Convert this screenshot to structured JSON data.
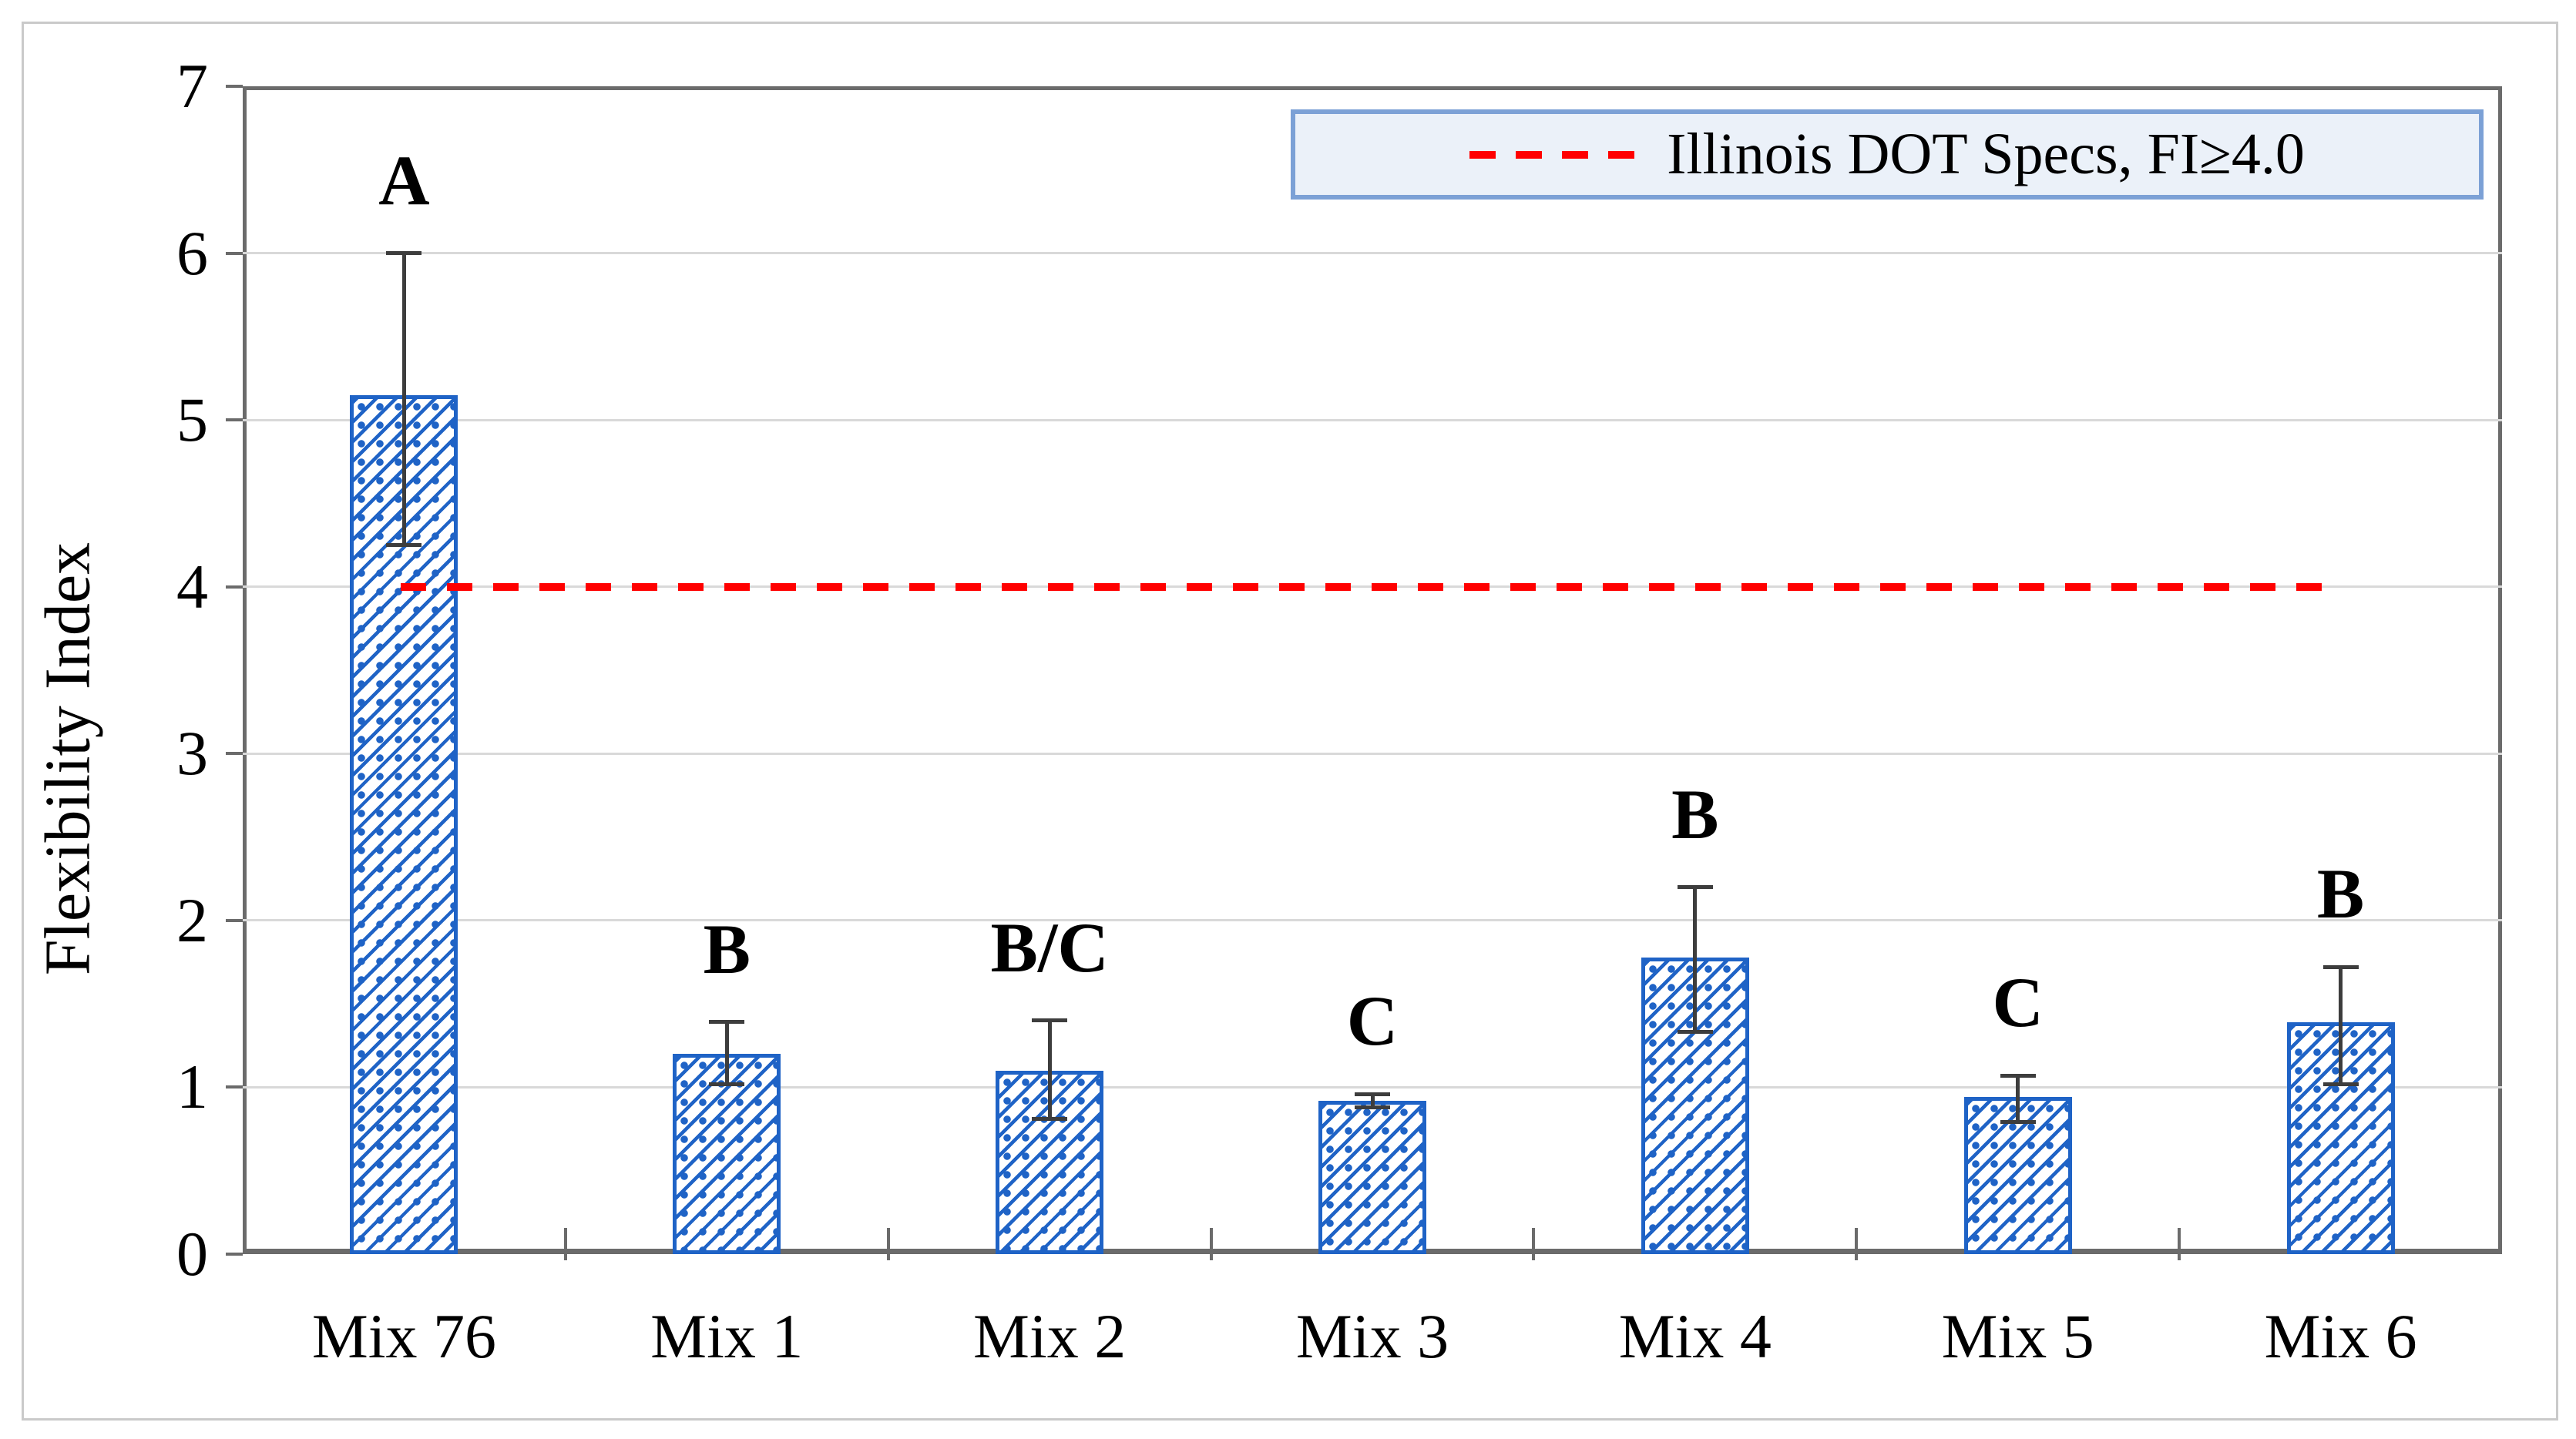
{
  "chart_data": {
    "type": "bar",
    "title": "",
    "xlabel": "",
    "ylabel": "Flexibility Index",
    "ylim": [
      0,
      7
    ],
    "yticks": [
      0,
      1,
      2,
      3,
      4,
      5,
      6,
      7
    ],
    "grid": "horizontal",
    "legend_position": "top-right",
    "categories": [
      "Mix 76",
      "Mix 1",
      "Mix 2",
      "Mix 3",
      "Mix 4",
      "Mix 5",
      "Mix 6"
    ],
    "series": [
      {
        "name": "Flexibility Index",
        "values": [
          5.15,
          1.2,
          1.1,
          0.92,
          1.78,
          0.94,
          1.39
        ],
        "error_upper": [
          6.0,
          1.39,
          1.4,
          0.96,
          2.2,
          1.07,
          1.72
        ],
        "error_lower": [
          4.25,
          1.02,
          0.81,
          0.88,
          1.33,
          0.79,
          1.02
        ],
        "sig_letters": [
          "A",
          "B",
          "B/C",
          "C",
          "B",
          "C",
          "B"
        ]
      }
    ],
    "reference_line": {
      "value": 4.0,
      "style": "dashed",
      "color": "#FF0000",
      "label": "Illinois DOT Specs, FI≥4.0"
    },
    "legend": {
      "entries": [
        {
          "marker": "red-dashed-line",
          "label": "Illinois DOT Specs, FI≥4.0"
        }
      ]
    },
    "colors": {
      "bar_hatch": "#1F63C6",
      "error_bar": "#3D3D3D",
      "reference_line": "#FF0000",
      "gridline": "#D9D9D9",
      "plot_border": "#6B6B6B",
      "legend_fill": "#EBF1F9",
      "legend_border": "#7CA1D6",
      "figure_border": "#CACACA"
    }
  }
}
